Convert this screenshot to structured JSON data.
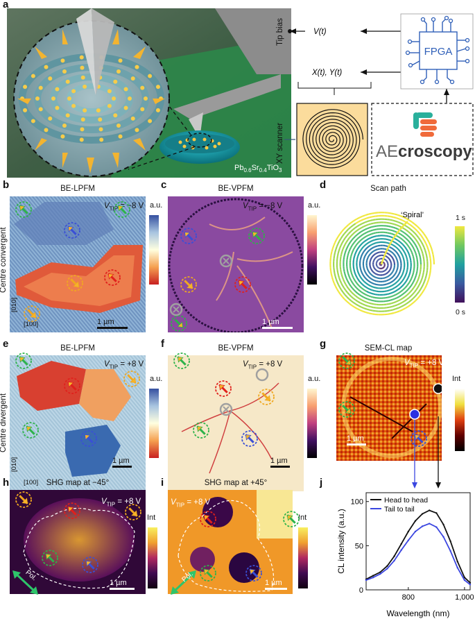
{
  "panel_letters": [
    "a",
    "b",
    "c",
    "d",
    "e",
    "f",
    "g",
    "h",
    "i",
    "j"
  ],
  "panel_a": {
    "tip_bias_label": "Tip bias",
    "vt_label": "V(t)",
    "xy_signal_label": "X(t), Y(t)",
    "xy_scanner_label": "XY scanner",
    "fpga_label": "FPGA",
    "logo_prefix": "AE",
    "logo_suffix": "croscopy",
    "material_label": "Pb0.6Sr0.4TiO3",
    "material_main": "Pb",
    "material_sub1": "0.6",
    "material_mid": "Sr",
    "material_sub2": "0.4",
    "material_end": "TiO",
    "material_sub3": "3"
  },
  "row_labels": {
    "convergent": "Centre convergent",
    "divergent": "Centre divergent"
  },
  "panels": {
    "b": {
      "title": "BE-LPFM",
      "vtip_prefix": "V",
      "vtip_sub": "TIP",
      "vtip_value": " = −8 V",
      "scale": "1 µm",
      "colorbar_label": "a.u.",
      "axis_y": "[010]",
      "axis_x": "[100]"
    },
    "c": {
      "title": "BE-VPFM",
      "vtip_prefix": "V",
      "vtip_sub": "TIP",
      "vtip_value": " = −8 V",
      "scale": "1 µm",
      "colorbar_label": "a.u."
    },
    "d": {
      "title": "Scan path",
      "spiral_label": "‘Spiral’",
      "colorbar_top": "1 s",
      "colorbar_bottom": "0 s"
    },
    "e": {
      "title": "BE-LPFM",
      "vtip_prefix": "V",
      "vtip_sub": "TIP",
      "vtip_value": " = +8 V",
      "scale": "1 µm",
      "colorbar_label": "a.u.",
      "axis_y": "[010]",
      "axis_x": "[100]"
    },
    "f": {
      "title": "BE-VPFM",
      "vtip_prefix": "V",
      "vtip_sub": "TIP",
      "vtip_value": " = +8 V",
      "scale": "1 µm",
      "colorbar_label": "a.u."
    },
    "g": {
      "title": "SEM-CL map",
      "vtip_prefix": "V",
      "vtip_sub": "TIP",
      "vtip_value": " = +8 V",
      "scale": "1 µm",
      "colorbar_label": "Int"
    },
    "h": {
      "title": "SHG map at −45°",
      "vtip_prefix": "V",
      "vtip_sub": "TIP",
      "vtip_value": " = +8 V",
      "scale": "1 µm",
      "colorbar_label": "Int",
      "pol_label": "Pol."
    },
    "i": {
      "title": "SHG map at +45°",
      "vtip_prefix": "V",
      "vtip_sub": "TIP",
      "vtip_value": " = +8 V",
      "scale": "1 µm",
      "colorbar_label": "Int",
      "pol_label": "Pol."
    }
  },
  "colors": {
    "green": "#2db34a",
    "blue": "#3a4fd6",
    "red": "#e0201c",
    "orange": "#f0a820",
    "gray": "#a0a0a0",
    "hh_line": "#111111",
    "tt_line": "#3b46e0"
  },
  "chart_data": {
    "type": "line",
    "xlabel": "Wavelength (nm)",
    "ylabel": "CL intensity (a.u.)",
    "xlim": [
      650,
      1020
    ],
    "ylim": [
      0,
      110
    ],
    "xticks": [
      800,
      1000
    ],
    "xtick_labels": [
      "800",
      "1,000"
    ],
    "yticks": [
      0,
      50,
      100
    ],
    "legend_position": "top-left",
    "series": [
      {
        "name": "Head to head",
        "x": [
          650,
          675,
          700,
          725,
          750,
          775,
          800,
          825,
          850,
          875,
          900,
          925,
          950,
          975,
          1000,
          1020
        ],
        "y": [
          12,
          16,
          20,
          27,
          38,
          52,
          66,
          78,
          86,
          90,
          87,
          74,
          55,
          32,
          14,
          8
        ]
      },
      {
        "name": "Tail to tail",
        "x": [
          650,
          675,
          700,
          725,
          750,
          775,
          800,
          825,
          850,
          875,
          900,
          925,
          950,
          975,
          1000,
          1020
        ],
        "y": [
          11,
          14,
          18,
          24,
          33,
          45,
          56,
          66,
          72,
          75,
          71,
          60,
          44,
          25,
          11,
          6
        ]
      }
    ]
  }
}
